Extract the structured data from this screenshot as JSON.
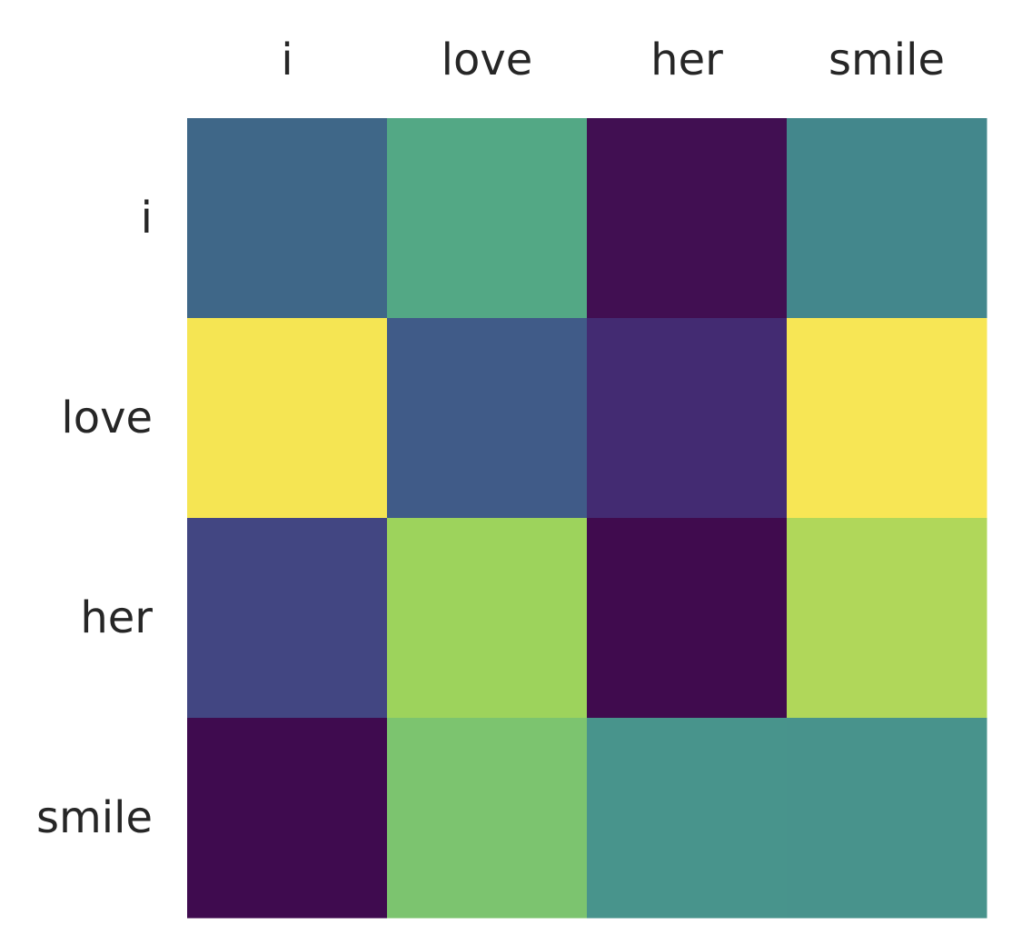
{
  "chart_data": {
    "type": "heatmap",
    "x_labels": [
      "i",
      "love",
      "her",
      "smile"
    ],
    "y_labels": [
      "i",
      "love",
      "her",
      "smile"
    ],
    "x_tick_position": "top",
    "colormap": "viridis",
    "grid": false,
    "colorbar": false,
    "values": [
      [
        0.28,
        0.62,
        0.02,
        0.45
      ],
      [
        0.98,
        0.26,
        0.09,
        0.97
      ],
      [
        0.21,
        0.82,
        0.0,
        0.87
      ],
      [
        0.0,
        0.76,
        0.5,
        0.5
      ]
    ],
    "cell_colors": [
      [
        "#3f6788",
        "#53a885",
        "#410f52",
        "#43878c"
      ],
      [
        "#f5e553",
        "#405b88",
        "#432b72",
        "#f7e655"
      ],
      [
        "#424682",
        "#9dd35c",
        "#400b4e",
        "#b0d75a"
      ],
      [
        "#3f0b4f",
        "#7cc46f",
        "#48948c",
        "#48938c"
      ]
    ]
  }
}
